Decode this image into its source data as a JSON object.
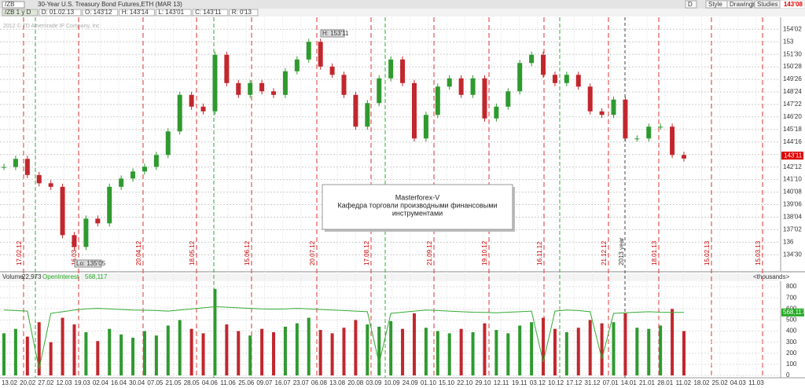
{
  "toolbar": {
    "symbol": "/ZB",
    "description": "30-Year U.S. Treasury Bond Futures,ETH (MAR 13)",
    "last": "143'08",
    "buttons": [
      "D",
      "Style",
      "Drawings",
      "Studies"
    ]
  },
  "info_row": [
    "/ZB 1 y D",
    "D: 01.02.13",
    "O: 143'12",
    "H: 143'14",
    "L: 143'01",
    "C: 143'11",
    "R: 0'13"
  ],
  "watermark": "2012 © TD Ameritrade IP Company, Inc.",
  "price_panel": {
    "ylim": [
      133.56,
      155.08
    ],
    "yticks": [
      {
        "value": 154.0625,
        "label": "154'02"
      },
      153,
      {
        "value": 151.9375,
        "label": "151'30"
      },
      {
        "value": 150.875,
        "label": "150'28"
      },
      {
        "value": 149.8125,
        "label": "149'26"
      },
      {
        "value": 148.75,
        "label": "148'24"
      },
      {
        "value": 147.6875,
        "label": "147'22"
      },
      {
        "value": 146.625,
        "label": "146'20"
      },
      {
        "value": 145.5625,
        "label": "145'18"
      },
      {
        "value": 144.5,
        "label": "144'16"
      },
      {
        "value": 143.4375,
        "label": "143'14"
      },
      {
        "value": 142.375,
        "label": "142'12"
      },
      {
        "value": 141.3125,
        "label": "141'10"
      },
      {
        "value": 140.25,
        "label": "140'08"
      },
      {
        "value": 139.1875,
        "label": "139'06"
      },
      {
        "value": 138.125,
        "label": "138'04"
      },
      {
        "value": 137.0625,
        "label": "137'02"
      },
      136,
      {
        "value": 134.9375,
        "label": "134'30"
      }
    ],
    "closes": [
      142.38,
      143.07,
      141.7,
      141.0,
      140.7,
      136.6,
      135.6,
      138.0,
      137.6,
      140.7,
      141.4,
      142.0,
      142.4,
      143.4,
      145.4,
      148.5,
      147.5,
      147.1,
      151.9,
      149.5,
      148.5,
      149.5,
      148.8,
      148.5,
      150.5,
      151.5,
      153.0,
      150.9,
      150.2,
      148.5,
      145.8,
      147.8,
      149.9,
      151.5,
      149.5,
      144.8,
      146.8,
      149.2,
      149.9,
      148.5,
      149.9,
      146.5,
      147.5,
      148.8,
      151.2,
      151.9,
      150.2,
      149.5,
      150.2,
      149.2,
      147.1,
      146.8,
      148.1,
      144.8,
      144.8,
      145.8,
      145.8,
      143.4,
      143.1
    ],
    "last_price": {
      "value": 143.34375,
      "label": "143'11"
    },
    "high_label": "H: 153'11",
    "low_label": "Lo: 135'05",
    "markers": [
      "17.02.12",
      "16.03.12",
      "20.04.12",
      "18.05.12",
      "15.06.12",
      "20.07.12",
      "17.08.12",
      "21.09.12",
      "19.10.12",
      "16.11.12",
      "21.12.12",
      "18.01.13",
      "15.02.13",
      "15.03.13"
    ],
    "year_marker": "2013 year",
    "note": [
      "Masterforex-V",
      "Кафедра торговли производными финансовыми",
      "инструментами"
    ]
  },
  "volume_panel": {
    "header": [
      "Volume",
      "22,973",
      "OpenInterest",
      "568,117",
      "<thousands>"
    ],
    "ylim": [
      0,
      850
    ],
    "yticks": [
      0,
      100,
      200,
      300,
      400,
      500,
      600,
      700,
      800
    ],
    "volume": [
      380,
      420,
      350,
      480,
      300,
      520,
      460,
      390,
      310,
      420,
      370,
      340,
      400,
      360,
      450,
      500,
      420,
      380,
      780,
      460,
      400,
      360,
      420,
      390,
      440,
      470,
      520,
      410,
      380,
      430,
      500,
      460,
      440,
      490,
      420,
      560,
      430,
      400,
      380,
      420,
      390,
      470,
      410,
      380,
      450,
      480,
      520,
      420,
      390,
      430,
      500,
      470,
      480,
      560,
      430,
      420,
      450,
      600,
      400
    ],
    "open_interest": [
      590,
      585,
      580,
      60,
      560,
      575,
      590,
      600,
      605,
      600,
      595,
      590,
      588,
      585,
      580,
      590,
      600,
      610,
      620,
      615,
      610,
      605,
      600,
      598,
      600,
      605,
      600,
      595,
      590,
      585,
      580,
      575,
      110,
      560,
      570,
      580,
      590,
      585,
      580,
      575,
      570,
      568,
      565,
      570,
      575,
      580,
      120,
      580,
      590,
      585,
      575,
      150,
      560,
      565,
      570,
      575,
      570,
      568,
      568
    ],
    "oi_last": {
      "value": 568.117,
      "label": "568,117"
    }
  },
  "x_axis": [
    "13.02",
    "20.02",
    "27.02",
    "12.03",
    "19.03",
    "02.04",
    "16.04",
    "30.04",
    "07.05",
    "21.05",
    "28.05",
    "04.06",
    "11.06",
    "25.06",
    "09.07",
    "16.07",
    "23.07",
    "06.08",
    "13.08",
    "20.08",
    "03.09",
    "10.09",
    "24.09",
    "01.10",
    "15.10",
    "22.10",
    "29.10",
    "12.11",
    "19.11",
    "03.12",
    "10.12",
    "17.12",
    "31.12",
    "07.01",
    "14.01",
    "21.01",
    "28.01",
    "11.02",
    "18.02",
    "25.02",
    "04.03",
    "11.03"
  ]
}
